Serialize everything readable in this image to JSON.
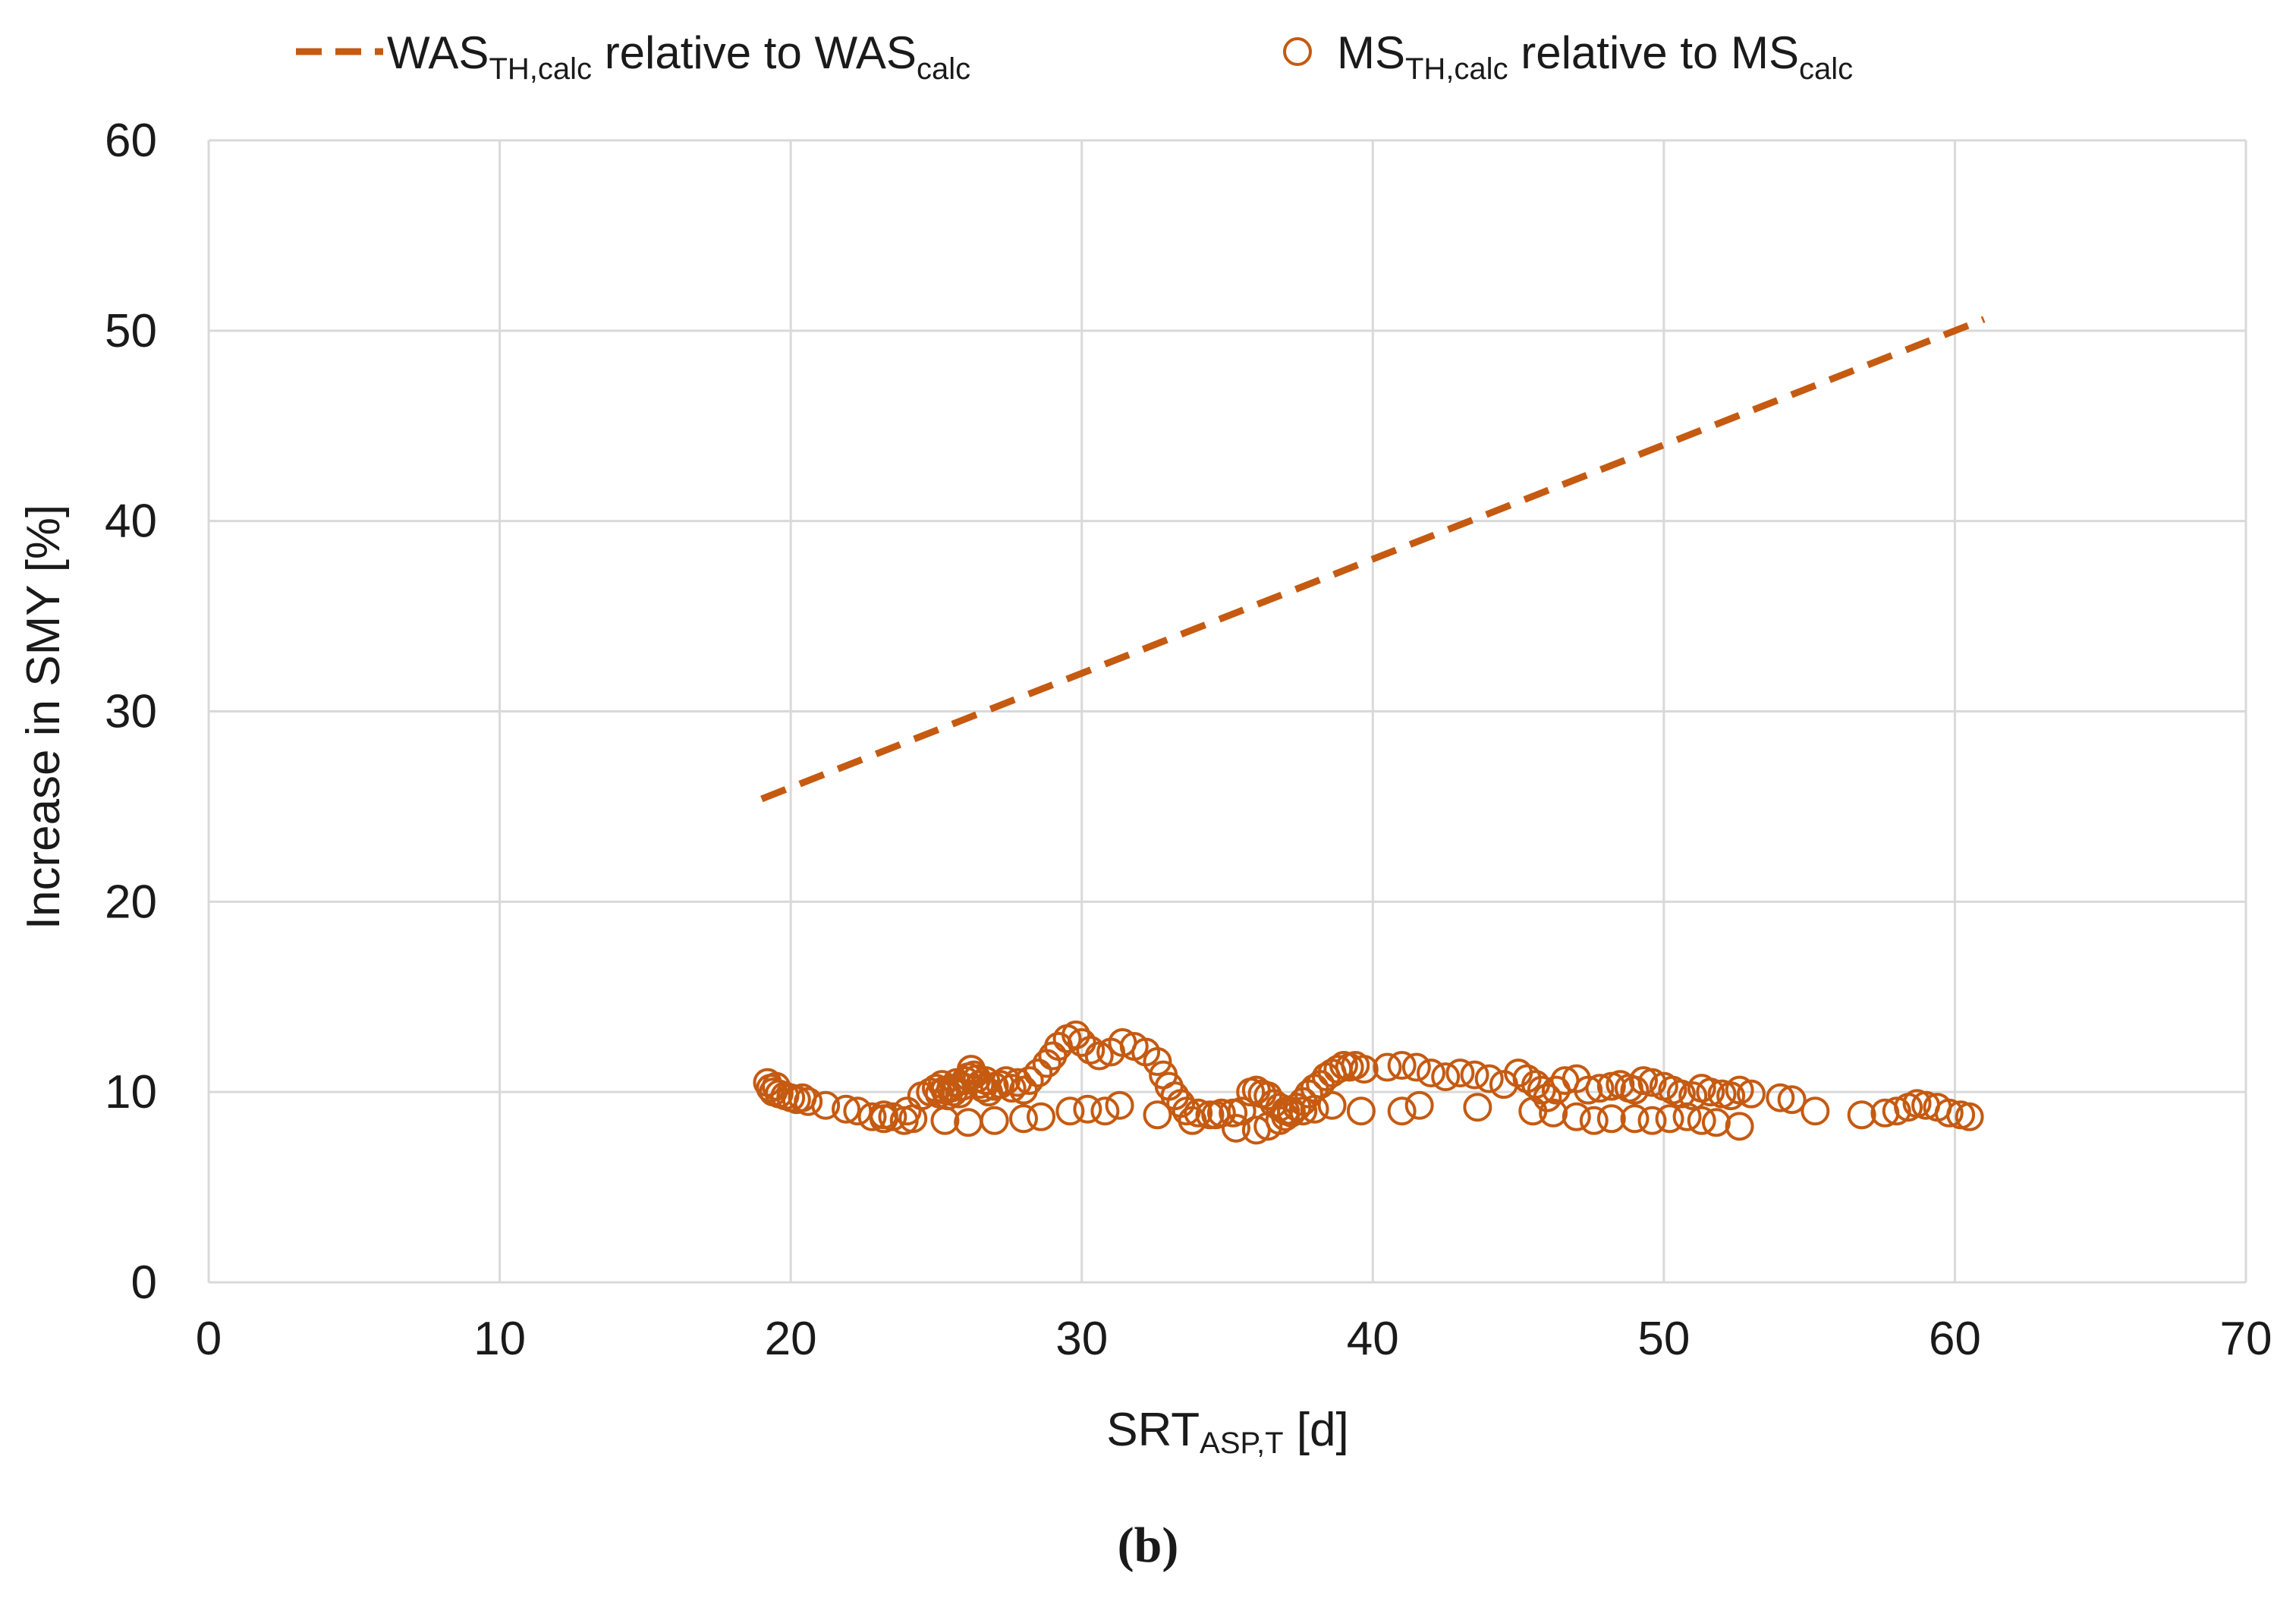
{
  "chart_data": {
    "type": "line+scatter",
    "title": "",
    "xlabel": {
      "main": "SRT",
      "sub": "ASP,T",
      "suffix": " [d]"
    },
    "ylabel": "Increase in SMY [%]",
    "xlim": [
      0,
      70
    ],
    "ylim": [
      0,
      60
    ],
    "xticks": [
      0,
      10,
      20,
      30,
      40,
      50,
      60,
      70
    ],
    "yticks": [
      0,
      10,
      20,
      30,
      40,
      50,
      60
    ],
    "grid": true,
    "legend_position": "top",
    "panel_label": "(b)",
    "series": [
      {
        "name": "WAS_TH,calc relative to WAS_calc",
        "legend": {
          "a": "WAS",
          "a_sub": "TH,calc",
          "mid": " relative to WAS",
          "b_sub": "calc"
        },
        "style": "dashed-line",
        "color": "#C55A11",
        "x": [
          19,
          61
        ],
        "y": [
          25.4,
          50.6
        ]
      },
      {
        "name": "MS_TH,calc relative to MS_calc",
        "legend": {
          "a": "MS",
          "a_sub": "TH,calc",
          "mid": " relative to MS",
          "b_sub": "calc"
        },
        "style": "open-circle-markers",
        "color": "#C55A11",
        "x": [
          19.2,
          19.3,
          19.4,
          19.5,
          19.6,
          19.8,
          20.0,
          20.2,
          20.4,
          20.6,
          21.2,
          21.9,
          22.3,
          22.8,
          23.2,
          23.5,
          23.9,
          24.2,
          24.5,
          24.8,
          25.0,
          25.1,
          25.2,
          25.3,
          25.4,
          25.5,
          25.6,
          25.7,
          25.8,
          25.9,
          26.0,
          26.1,
          26.2,
          26.3,
          26.4,
          26.5,
          26.6,
          26.7,
          26.8,
          27.0,
          27.2,
          27.4,
          27.6,
          27.8,
          28.0,
          28.2,
          28.5,
          28.8,
          29.0,
          29.2,
          29.5,
          29.8,
          30.0,
          30.3,
          30.6,
          31.0,
          31.4,
          31.8,
          32.2,
          32.6,
          32.8,
          33.0,
          33.2,
          33.4,
          33.6,
          34.0,
          34.4,
          34.8,
          35.2,
          35.5,
          35.8,
          36.0,
          36.2,
          36.4,
          36.6,
          36.8,
          37.0,
          37.2,
          37.4,
          37.6,
          37.8,
          38.0,
          38.2,
          38.4,
          38.6,
          38.8,
          39.0,
          39.2,
          39.4,
          39.7,
          40.5,
          41.0,
          41.5,
          42.0,
          42.5,
          43.0,
          43.5,
          44.0,
          44.5,
          45.0,
          45.3,
          45.6,
          45.8,
          46.0,
          46.3,
          46.6,
          47.0,
          47.4,
          47.8,
          48.2,
          48.5,
          48.8,
          49.0,
          49.3,
          49.6,
          50.0,
          50.3,
          50.6,
          51.0,
          51.3,
          51.6,
          52.0,
          52.3,
          52.6,
          53.0,
          54.0,
          54.4,
          55.2,
          56.8,
          57.6,
          58.0,
          58.4,
          58.7,
          59.0,
          59.4,
          59.8,
          60.2,
          60.5,
          23.2,
          24.0,
          25.3,
          26.1,
          27.0,
          28.0,
          28.6,
          29.6,
          30.2,
          30.8,
          31.3,
          32.6,
          33.8,
          34.6,
          35.3,
          36.0,
          36.4,
          36.8,
          37.0,
          37.2,
          37.6,
          38.0,
          38.6,
          39.6,
          41.0,
          41.6,
          43.6,
          45.5,
          46.2,
          47.0,
          47.6,
          48.2,
          49.0,
          49.6,
          50.2,
          50.8,
          51.3,
          51.8,
          52.6
        ],
        "y": [
          10.5,
          10.2,
          10.0,
          10.3,
          9.9,
          9.8,
          9.7,
          9.6,
          9.7,
          9.5,
          9.3,
          9.1,
          9.0,
          8.7,
          8.6,
          8.7,
          8.5,
          8.6,
          9.8,
          10.0,
          10.2,
          9.9,
          10.4,
          10.1,
          9.8,
          10.2,
          10.0,
          10.5,
          9.9,
          10.3,
          10.6,
          10.8,
          11.2,
          10.9,
          10.7,
          10.4,
          10.2,
          10.6,
          10.0,
          10.3,
          10.4,
          10.6,
          10.2,
          10.5,
          10.1,
          10.6,
          11.0,
          11.5,
          11.9,
          12.4,
          12.8,
          13.0,
          12.6,
          12.2,
          11.9,
          12.1,
          12.6,
          12.4,
          12.1,
          11.6,
          10.9,
          10.3,
          9.8,
          9.4,
          9.0,
          8.9,
          8.8,
          8.9,
          8.9,
          9.0,
          10.0,
          10.1,
          9.9,
          9.8,
          9.4,
          9.2,
          9.0,
          9.0,
          9.2,
          9.5,
          9.9,
          10.2,
          10.4,
          10.8,
          11.0,
          11.2,
          11.4,
          11.3,
          11.4,
          11.2,
          11.3,
          11.4,
          11.3,
          11.0,
          10.8,
          11.0,
          10.9,
          10.7,
          10.4,
          11.0,
          10.7,
          10.4,
          10.1,
          9.7,
          10.1,
          10.6,
          10.7,
          10.1,
          10.2,
          10.3,
          10.4,
          10.2,
          10.1,
          10.6,
          10.5,
          10.3,
          10.1,
          9.9,
          9.8,
          10.2,
          10.0,
          9.9,
          9.8,
          10.1,
          9.9,
          9.7,
          9.6,
          9.0,
          8.8,
          8.9,
          9.0,
          9.2,
          9.4,
          9.3,
          9.2,
          8.9,
          8.8,
          8.7,
          8.8,
          9.0,
          8.5,
          8.4,
          8.5,
          8.6,
          8.7,
          9.0,
          9.1,
          9.0,
          9.3,
          8.8,
          8.5,
          8.8,
          8.1,
          8.0,
          8.2,
          8.5,
          8.7,
          8.9,
          9.0,
          9.1,
          9.3,
          9.0,
          9.0,
          9.3,
          9.2,
          9.0,
          8.9,
          8.7,
          8.5,
          8.6,
          8.6,
          8.5,
          8.6,
          8.7,
          8.5,
          8.4,
          8.2
        ]
      }
    ]
  }
}
